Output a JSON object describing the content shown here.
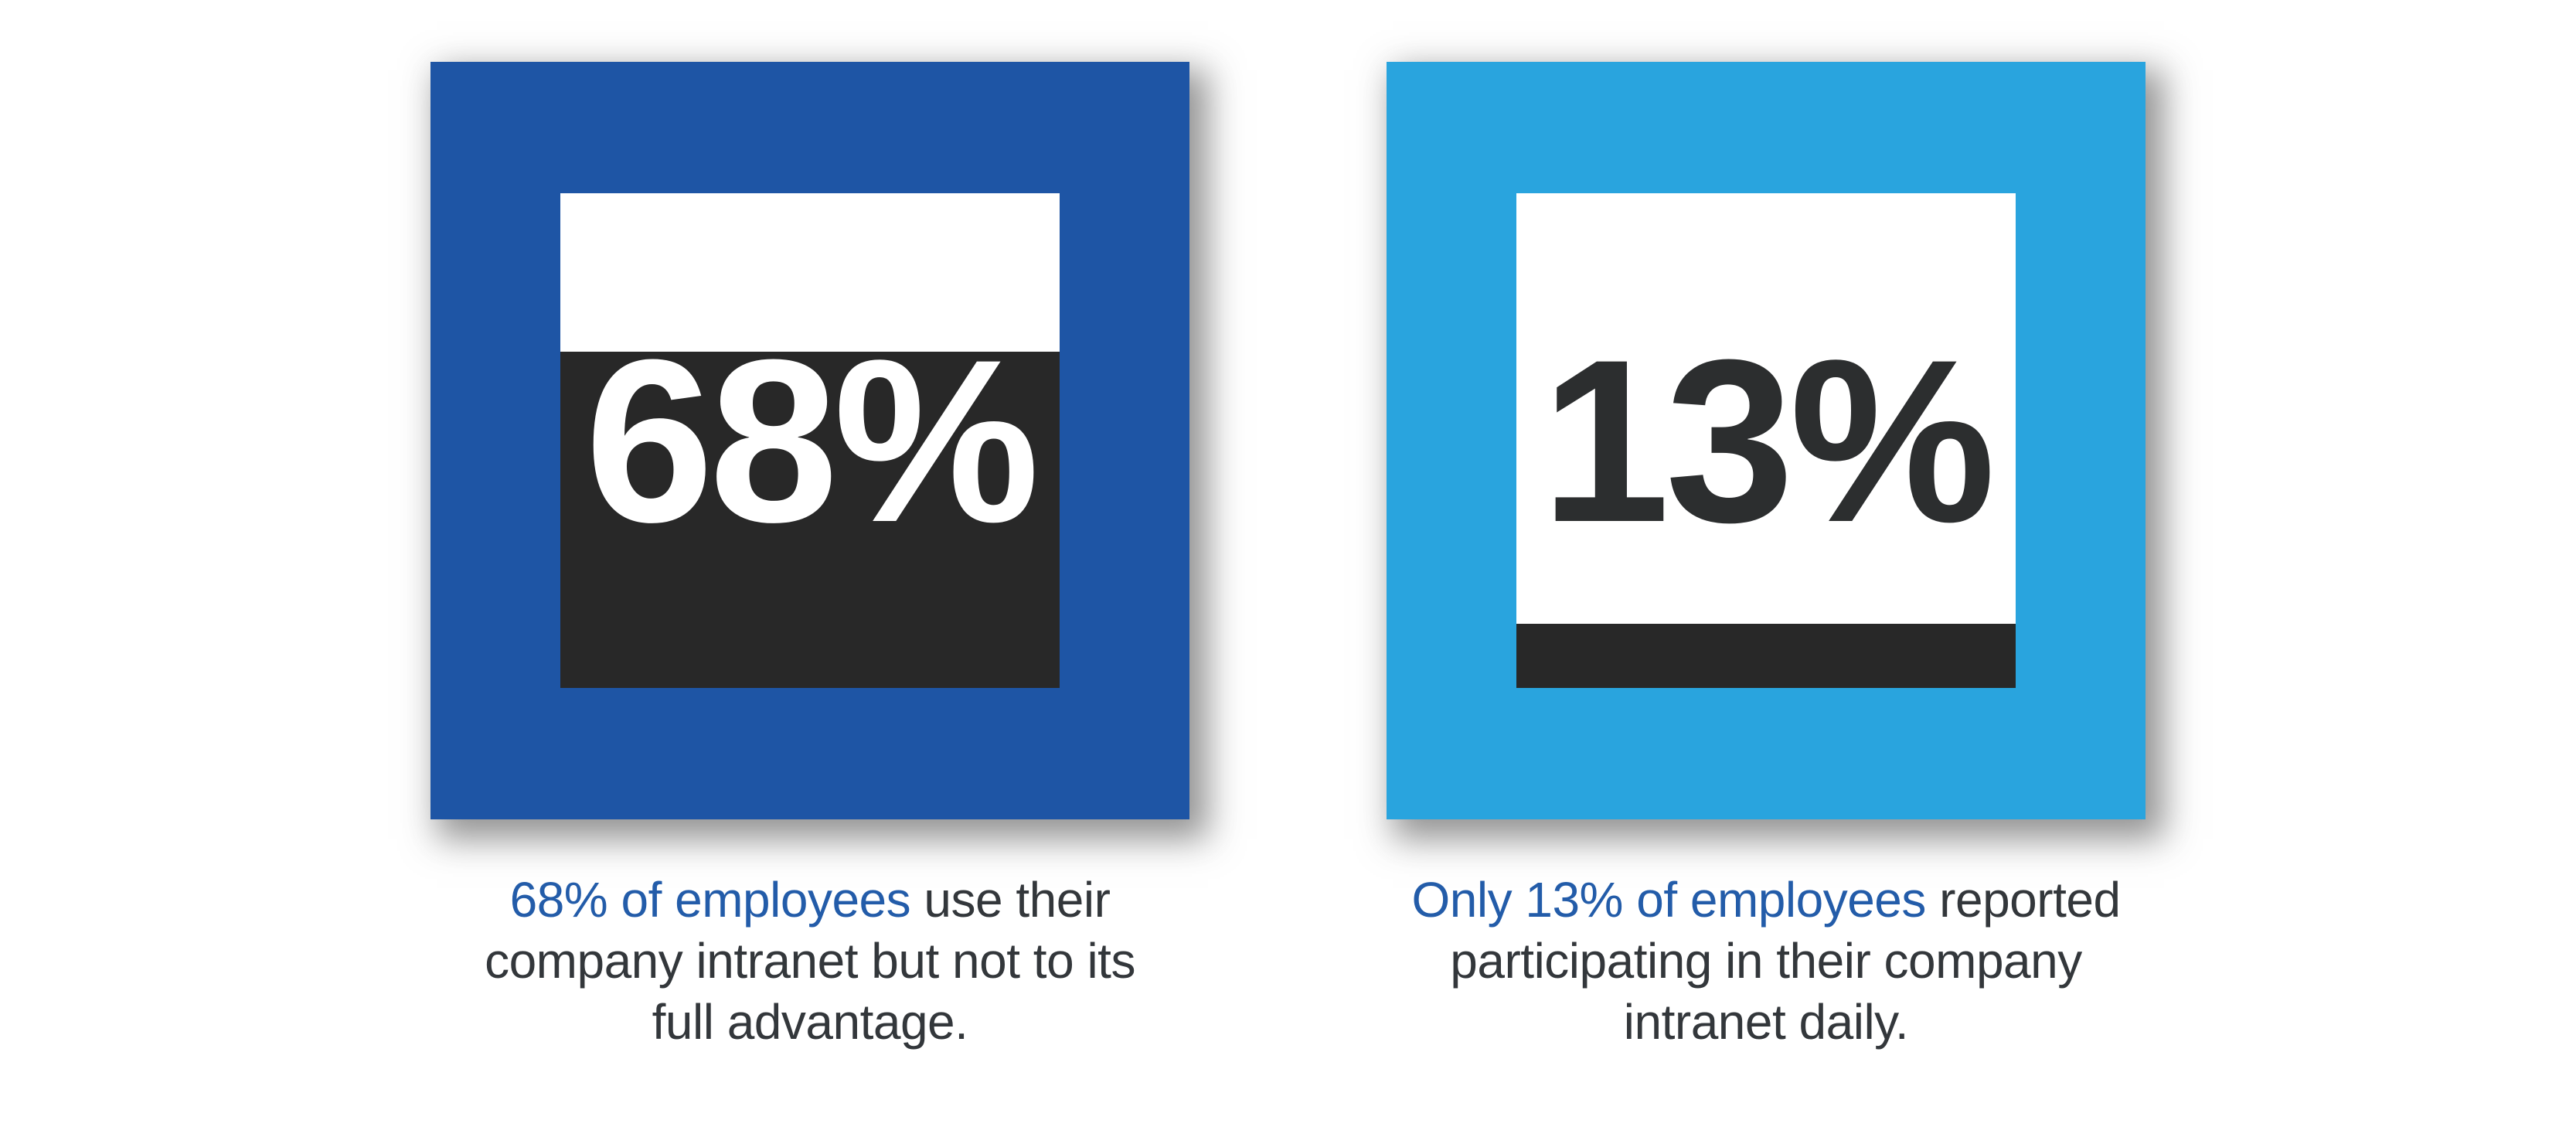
{
  "chart_data": {
    "type": "bar",
    "title": "",
    "units": "%",
    "categories": [
      "68% of employees use their company intranet but not to its full advantage.",
      "Only 13% of employees reported participating in their company intranet daily."
    ],
    "values": [
      68,
      13
    ],
    "value_labels": [
      "68%",
      "13%"
    ],
    "layout_hint": "two square fill-gauge stat blocks side by side, captions below"
  },
  "colors": {
    "background": "#FFFFFF",
    "highlight_text": "#235CA9",
    "body_text": "#33373B",
    "gauge_fill": "#282828",
    "frame_left": "#1E55A5",
    "frame_right": "#29A4DE"
  },
  "panels": [
    {
      "value": 68,
      "value_label": "68%",
      "frame_color": "#1E55A5",
      "fill_color": "#282828",
      "number_color": "#FFFFFF",
      "caption": {
        "highlight": "68% of employees",
        "line1_rest": " use their",
        "line2": "company intranet but not to its",
        "line3": "full advantage."
      }
    },
    {
      "value": 13,
      "value_label": "13%",
      "frame_color": "#29A4DE",
      "fill_color": "#282828",
      "number_color": "#2C2E2F",
      "caption": {
        "highlight": "Only 13% of employees",
        "line1_rest": " reported",
        "line2": "participating in their company",
        "line3": "intranet daily."
      }
    }
  ]
}
